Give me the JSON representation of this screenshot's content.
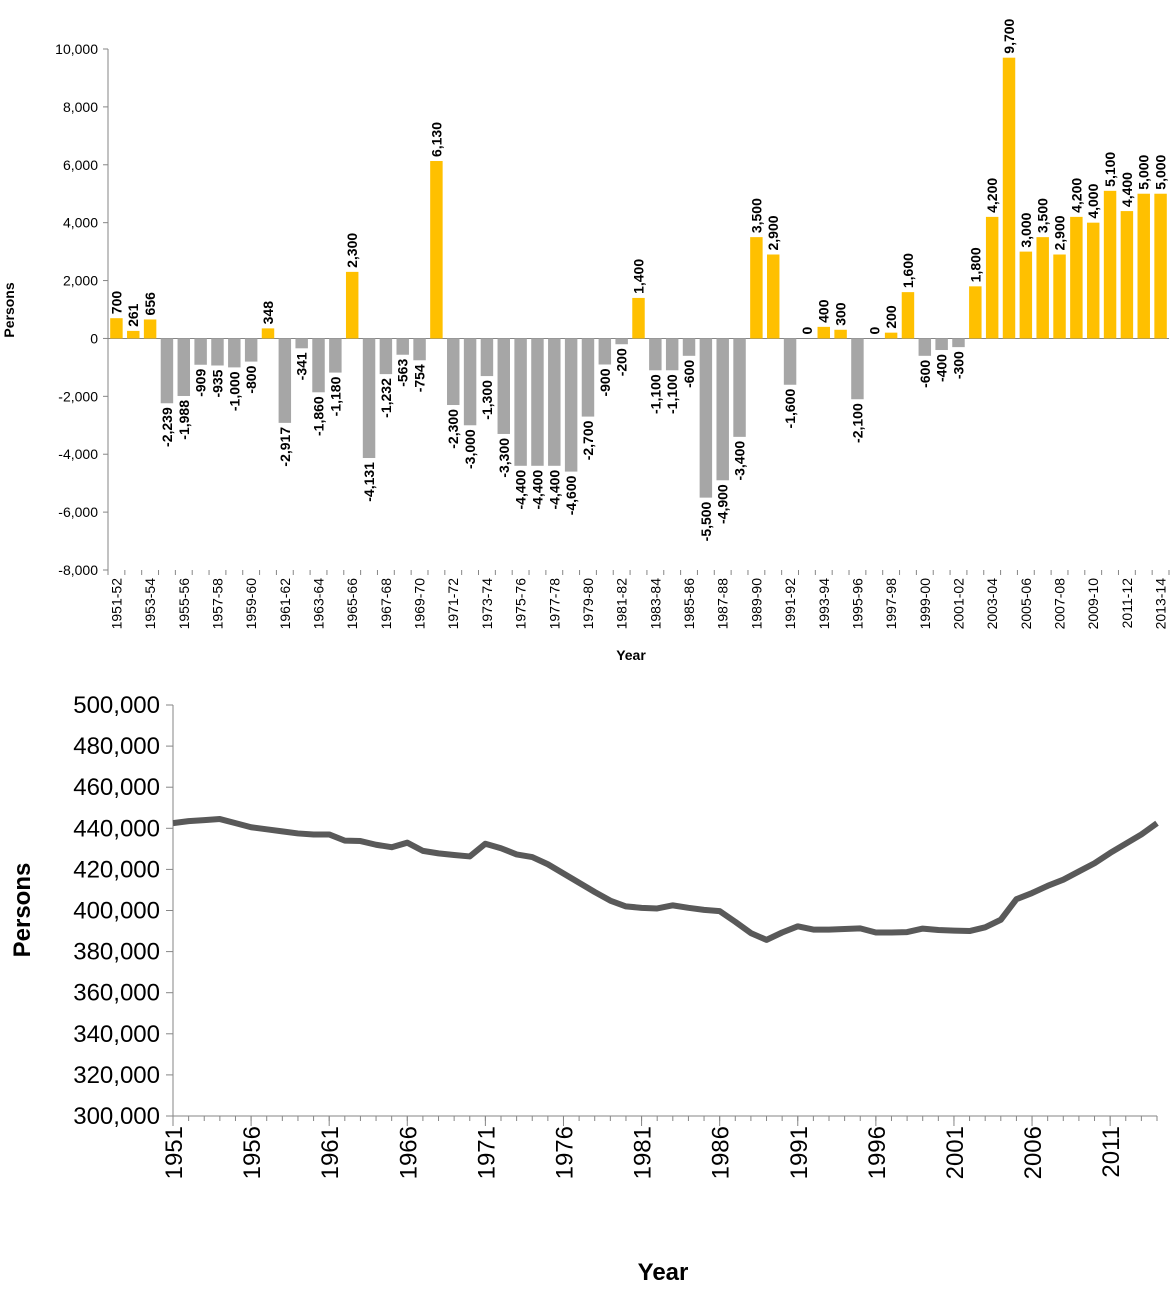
{
  "chart_data": [
    {
      "type": "bar",
      "x_label": "Year",
      "y_label": "Persons",
      "categories": [
        "1951-52",
        null,
        "1953-54",
        null,
        "1955-56",
        null,
        "1957-58",
        null,
        "1959-60",
        null,
        "1961-62",
        null,
        "1963-64",
        null,
        "1965-66",
        null,
        "1967-68",
        null,
        "1969-70",
        null,
        "1971-72",
        null,
        "1973-74",
        null,
        "1975-76",
        null,
        "1977-78",
        null,
        "1979-80",
        null,
        "1981-82",
        null,
        "1983-84",
        null,
        "1985-86",
        null,
        "1987-88",
        null,
        "1989-90",
        null,
        "1991-92",
        null,
        "1993-94",
        null,
        "1995-96",
        null,
        "1997-98",
        null,
        "1999-00",
        null,
        "2001-02",
        null,
        "2003-04",
        null,
        "2005-06",
        null,
        "2007-08",
        null,
        "2009-10",
        null,
        "2011-12",
        null,
        "2013-14"
      ],
      "values": [
        700,
        261,
        656,
        -2239,
        -1988,
        -909,
        -935,
        -1000,
        -800,
        348,
        -2917,
        -341,
        -1860,
        -1180,
        2300,
        -4131,
        -1232,
        -563,
        -754,
        6130,
        -2300,
        -3000,
        -1300,
        -3300,
        -4400,
        -4400,
        -4400,
        -4600,
        -2700,
        -900,
        -200,
        1400,
        -1100,
        -1100,
        -600,
        -5500,
        -4900,
        -3400,
        3500,
        2900,
        -1600,
        0,
        400,
        300,
        -2100,
        0,
        200,
        1600,
        -600,
        -400,
        -300,
        1800,
        4200,
        9700,
        3000,
        3500,
        2900,
        4200,
        4000,
        5100,
        4400,
        5000,
        5000
      ],
      "value_labels": [
        "700",
        "261",
        "656",
        "-2,239",
        "-1,988",
        "-909",
        "-935",
        "-1,000",
        "-800",
        "348",
        "-2,917",
        "-341",
        "-1,860",
        "-1,180",
        "2,300",
        "-4,131",
        "-1,232",
        "-563",
        "-754",
        "6,130",
        "-2,300",
        "-3,000",
        "-1,300",
        "-3,300",
        "-4,400",
        "-4,400",
        "-4,400",
        "-4,600",
        "-2,700",
        "-900",
        "-200",
        "1,400",
        "-1,100",
        "-1,100",
        "-600",
        "-5,500",
        "-4,900",
        "-3,400",
        "3,500",
        "2,900",
        "-1,600",
        "0",
        "400",
        "300",
        "-2,100",
        "0",
        "200",
        "1,600",
        "-600",
        "-400",
        "-300",
        "1,800",
        "4,200",
        "9,700",
        "3,000",
        "3,500",
        "2,900",
        "4,200",
        "4,000",
        "5,100",
        "4,400",
        "5,000",
        "5,000"
      ],
      "positive_color": "#ffc000",
      "negative_color": "#a6a6a6",
      "ylim": [
        -8000,
        10000
      ],
      "yticks": [
        {
          "value": -8000,
          "label": "-8,000"
        },
        {
          "value": -6000,
          "label": "-6,000"
        },
        {
          "value": -4000,
          "label": "-4,000"
        },
        {
          "value": -2000,
          "label": "-2,000"
        },
        0,
        {
          "value": 2000,
          "label": "2,000"
        },
        {
          "value": 4000,
          "label": "4,000"
        },
        {
          "value": 6000,
          "label": "6,000"
        },
        {
          "value": 8000,
          "label": "8,000"
        },
        {
          "value": 10000,
          "label": "10,000"
        }
      ],
      "grid": false
    },
    {
      "type": "line",
      "x_label": "Year",
      "y_label": "Persons",
      "x": [
        1951,
        1952,
        1953,
        1954,
        1955,
        1956,
        1957,
        1958,
        1959,
        1960,
        1961,
        1962,
        1963,
        1964,
        1965,
        1966,
        1967,
        1968,
        1969,
        1970,
        1971,
        1972,
        1973,
        1974,
        1975,
        1976,
        1977,
        1978,
        1979,
        1980,
        1981,
        1982,
        1983,
        1984,
        1985,
        1986,
        1987,
        1988,
        1989,
        1990,
        1991,
        1992,
        1993,
        1994,
        1995,
        1996,
        1997,
        1998,
        1999,
        2000,
        2001,
        2002,
        2003,
        2004,
        2005,
        2006,
        2007,
        2008,
        2009,
        2010,
        2011,
        2012,
        2013,
        2014
      ],
      "values": [
        442500,
        443500,
        444000,
        444500,
        442500,
        440500,
        439500,
        438500,
        437500,
        437000,
        437000,
        434000,
        433800,
        432000,
        430800,
        433000,
        429000,
        427800,
        427000,
        426300,
        432500,
        430300,
        427300,
        426000,
        422500,
        418000,
        413500,
        409000,
        404800,
        402000,
        401300,
        401000,
        402500,
        401300,
        400300,
        399700,
        394500,
        389000,
        385700,
        389300,
        392300,
        390700,
        390700,
        391000,
        391300,
        389300,
        389300,
        389500,
        391200,
        390500,
        390200,
        390000,
        391800,
        395500,
        405500,
        408500,
        412000,
        415000,
        419000,
        423000,
        428000,
        432500,
        437000,
        442500
      ],
      "color": "#595959",
      "xlim": [
        1951,
        2014
      ],
      "xticks": [
        1951,
        1956,
        1961,
        1966,
        1971,
        1976,
        1981,
        1986,
        1991,
        1996,
        2001,
        2006,
        2011
      ],
      "ylim": [
        300000,
        500000
      ],
      "yticks": [
        {
          "value": 300000,
          "label": "300,000"
        },
        {
          "value": 320000,
          "label": "320,000"
        },
        {
          "value": 340000,
          "label": "340,000"
        },
        {
          "value": 360000,
          "label": "360,000"
        },
        {
          "value": 380000,
          "label": "380,000"
        },
        {
          "value": 400000,
          "label": "400,000"
        },
        {
          "value": 420000,
          "label": "420,000"
        },
        {
          "value": 440000,
          "label": "440,000"
        },
        {
          "value": 460000,
          "label": "460,000"
        },
        {
          "value": 480000,
          "label": "480,000"
        },
        {
          "value": 500000,
          "label": "500,000"
        }
      ],
      "grid": false
    }
  ]
}
